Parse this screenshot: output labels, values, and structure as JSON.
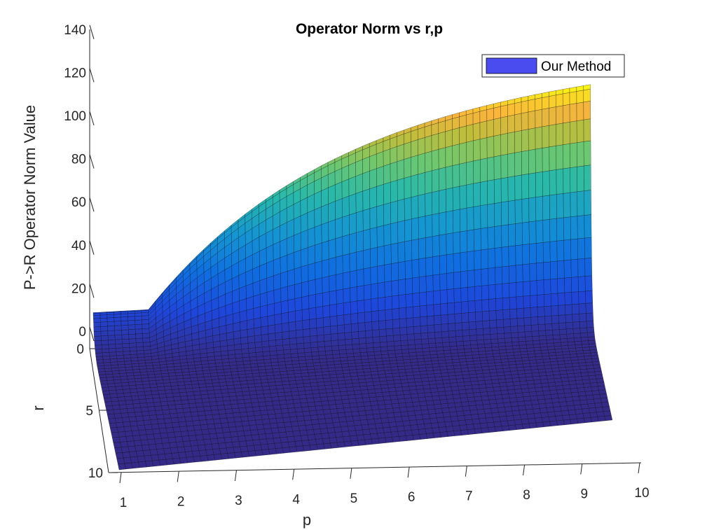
{
  "chart_data": {
    "type": "surface",
    "title": "Operator Norm vs r,p",
    "xlabel": "p",
    "ylabel": "r",
    "zlabel": "P->R Operator Norm Value",
    "x_ticks": [
      "1",
      "2",
      "3",
      "4",
      "5",
      "6",
      "7",
      "8",
      "9",
      "10"
    ],
    "y_ticks": [
      "0",
      "5",
      "10"
    ],
    "z_ticks": [
      "0",
      "20",
      "40",
      "60",
      "80",
      "100",
      "120",
      "140"
    ],
    "xlim": [
      0.5,
      10
    ],
    "ylim": [
      0,
      10
    ],
    "zlim": [
      0,
      140
    ],
    "legend": {
      "position": "top-right",
      "entries": [
        "Our Method"
      ]
    },
    "colormap": "parula",
    "legend_color": "#4a4cf0",
    "surface_description_values": {
      "p_range": [
        0.5,
        9.5
      ],
      "r_range": [
        0,
        10
      ],
      "flat_region_p_max": 1.5,
      "max_value_at_r0_p_max": 118,
      "value_at_r0_flat_region": 18
    }
  }
}
